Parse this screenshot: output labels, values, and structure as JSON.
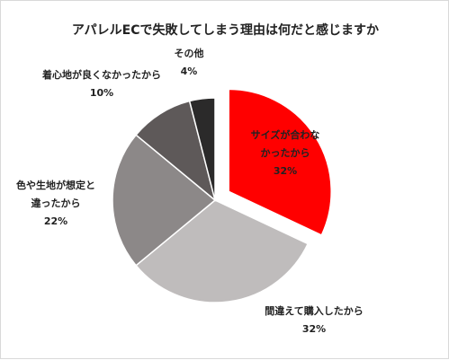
{
  "chart_data": {
    "type": "pie",
    "title": "アパレルECで失敗してしまう理由は何だと感じますか",
    "slices": [
      {
        "label": [
          "サイズが合わな",
          "かったから"
        ],
        "value": 32,
        "value_label": "32%",
        "color": "#ff0000",
        "exploded": true
      },
      {
        "label": [
          "間違えて購入したから"
        ],
        "value": 32,
        "value_label": "32%",
        "color": "#bfbcbc",
        "exploded": false
      },
      {
        "label": [
          "色や生地が想定と",
          "違ったから"
        ],
        "value": 22,
        "value_label": "22%",
        "color": "#8c8888",
        "exploded": false
      },
      {
        "label": [
          "着心地が良くなかったから"
        ],
        "value": 10,
        "value_label": "10%",
        "color": "#5e5959",
        "exploded": false
      },
      {
        "label": [
          "その他"
        ],
        "value": 4,
        "value_label": "4%",
        "color": "#2b2a2a",
        "exploded": false
      }
    ],
    "start_angle_deg": 0,
    "direction": "clockwise"
  }
}
